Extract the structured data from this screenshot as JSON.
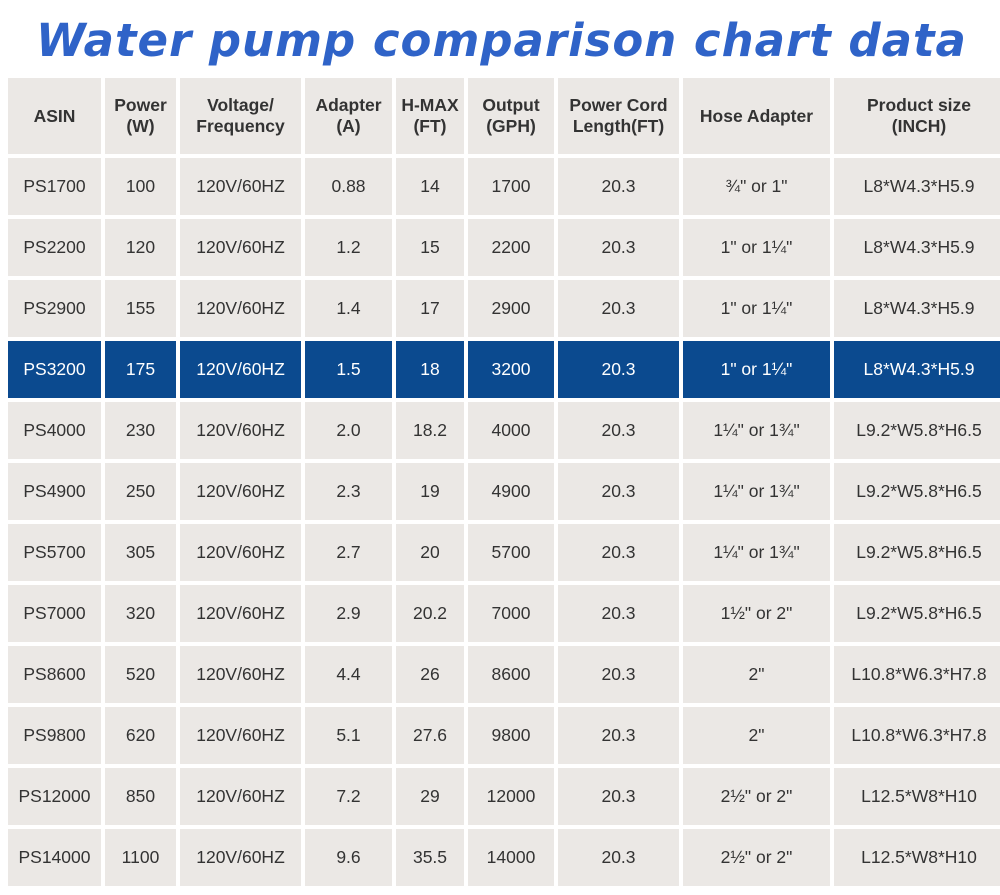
{
  "title": "Water pump comparison chart data",
  "colors": {
    "title": "#2f63c8",
    "cell_bg": "#ebe8e5",
    "highlight_bg": "#0b4a8f",
    "highlight_text": "#ffffff"
  },
  "table": {
    "headers": [
      [
        "ASIN"
      ],
      [
        "Power",
        "(W)"
      ],
      [
        "Voltage/",
        "Frequency"
      ],
      [
        "Adapter",
        "(A)"
      ],
      [
        "H-MAX",
        "(FT)"
      ],
      [
        "Output",
        "(GPH)"
      ],
      [
        "Power Cord",
        "Length(FT)"
      ],
      [
        "Hose Adapter"
      ],
      [
        "Product size",
        "(INCH)"
      ]
    ],
    "highlighted_row": 3,
    "rows": [
      [
        "PS1700",
        "100",
        "120V/60HZ",
        "0.88",
        "14",
        "1700",
        "20.3",
        "¾\" or 1\"",
        "L8*W4.3*H5.9"
      ],
      [
        "PS2200",
        "120",
        "120V/60HZ",
        "1.2",
        "15",
        "2200",
        "20.3",
        "1\" or 1¼\"",
        "L8*W4.3*H5.9"
      ],
      [
        "PS2900",
        "155",
        "120V/60HZ",
        "1.4",
        "17",
        "2900",
        "20.3",
        "1\" or 1¼\"",
        "L8*W4.3*H5.9"
      ],
      [
        "PS3200",
        "175",
        "120V/60HZ",
        "1.5",
        "18",
        "3200",
        "20.3",
        "1\" or 1¼\"",
        "L8*W4.3*H5.9"
      ],
      [
        "PS4000",
        "230",
        "120V/60HZ",
        "2.0",
        "18.2",
        "4000",
        "20.3",
        "1¼\" or 1¾\"",
        "L9.2*W5.8*H6.5"
      ],
      [
        "PS4900",
        "250",
        "120V/60HZ",
        "2.3",
        "19",
        "4900",
        "20.3",
        "1¼\" or 1¾\"",
        "L9.2*W5.8*H6.5"
      ],
      [
        "PS5700",
        "305",
        "120V/60HZ",
        "2.7",
        "20",
        "5700",
        "20.3",
        "1¼\" or 1¾\"",
        "L9.2*W5.8*H6.5"
      ],
      [
        "PS7000",
        "320",
        "120V/60HZ",
        "2.9",
        "20.2",
        "7000",
        "20.3",
        "1½\" or 2\"",
        "L9.2*W5.8*H6.5"
      ],
      [
        "PS8600",
        "520",
        "120V/60HZ",
        "4.4",
        "26",
        "8600",
        "20.3",
        "2\"",
        "L10.8*W6.3*H7.8"
      ],
      [
        "PS9800",
        "620",
        "120V/60HZ",
        "5.1",
        "27.6",
        "9800",
        "20.3",
        "2\"",
        "L10.8*W6.3*H7.8"
      ],
      [
        "PS12000",
        "850",
        "120V/60HZ",
        "7.2",
        "29",
        "12000",
        "20.3",
        "2½\" or 2\"",
        "L12.5*W8*H10"
      ],
      [
        "PS14000",
        "1100",
        "120V/60HZ",
        "9.6",
        "35.5",
        "14000",
        "20.3",
        "2½\" or 2\"",
        "L12.5*W8*H10"
      ]
    ]
  }
}
